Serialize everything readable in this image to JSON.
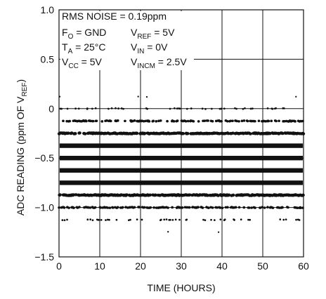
{
  "chart_data": {
    "type": "scatter",
    "title": "",
    "xlabel": "TIME (HOURS)",
    "ylabel": {
      "main": "ADC READING (ppm OF V",
      "sub": "REF",
      "tail": ")"
    },
    "xlim": [
      0,
      60
    ],
    "ylim": [
      -1.5,
      1.0
    ],
    "x_ticks": [
      0,
      10,
      20,
      30,
      40,
      50,
      60
    ],
    "x_tick_labels": [
      "0",
      "10",
      "20",
      "30",
      "40",
      "50",
      "60"
    ],
    "y_ticks": [
      1.0,
      0.5,
      0,
      -0.5,
      -1.0,
      -1.5
    ],
    "y_tick_labels": [
      "1.0",
      "0.5",
      "0",
      "−0.5",
      "−1.0",
      "−1.5"
    ],
    "grid": true,
    "annotations": [
      {
        "main": "RMS NOISE = 0.19ppm",
        "sub": "",
        "tail": ""
      },
      {
        "main": "F",
        "sub": "O",
        "tail": " = GND"
      },
      {
        "main": "V",
        "sub": "REF",
        "tail": " = 5V"
      },
      {
        "main": "T",
        "sub": "A",
        "tail": " = 25°C"
      },
      {
        "main": "V",
        "sub": "IN",
        "tail": " = 0V"
      },
      {
        "main": "V",
        "sub": "CC",
        "tail": " = 5V"
      },
      {
        "main": "V",
        "sub": "INCM",
        "tail": " = 2.5V"
      }
    ],
    "series": [
      {
        "levels": [
          {
            "y": 0.12,
            "density": 0.004
          },
          {
            "y": 0.0,
            "density": 0.14
          },
          {
            "y": -0.125,
            "density": 0.42
          },
          {
            "y": -0.25,
            "density": 0.72
          },
          {
            "y": -0.375,
            "density": 1.0
          },
          {
            "y": -0.5,
            "density": 1.0
          },
          {
            "y": -0.625,
            "density": 1.0
          },
          {
            "y": -0.75,
            "density": 1.0
          },
          {
            "y": -0.875,
            "density": 0.72
          },
          {
            "y": -1.0,
            "density": 0.42
          },
          {
            "y": -1.125,
            "density": 0.14
          },
          {
            "y": -1.25,
            "density": 0.004
          }
        ]
      }
    ]
  }
}
